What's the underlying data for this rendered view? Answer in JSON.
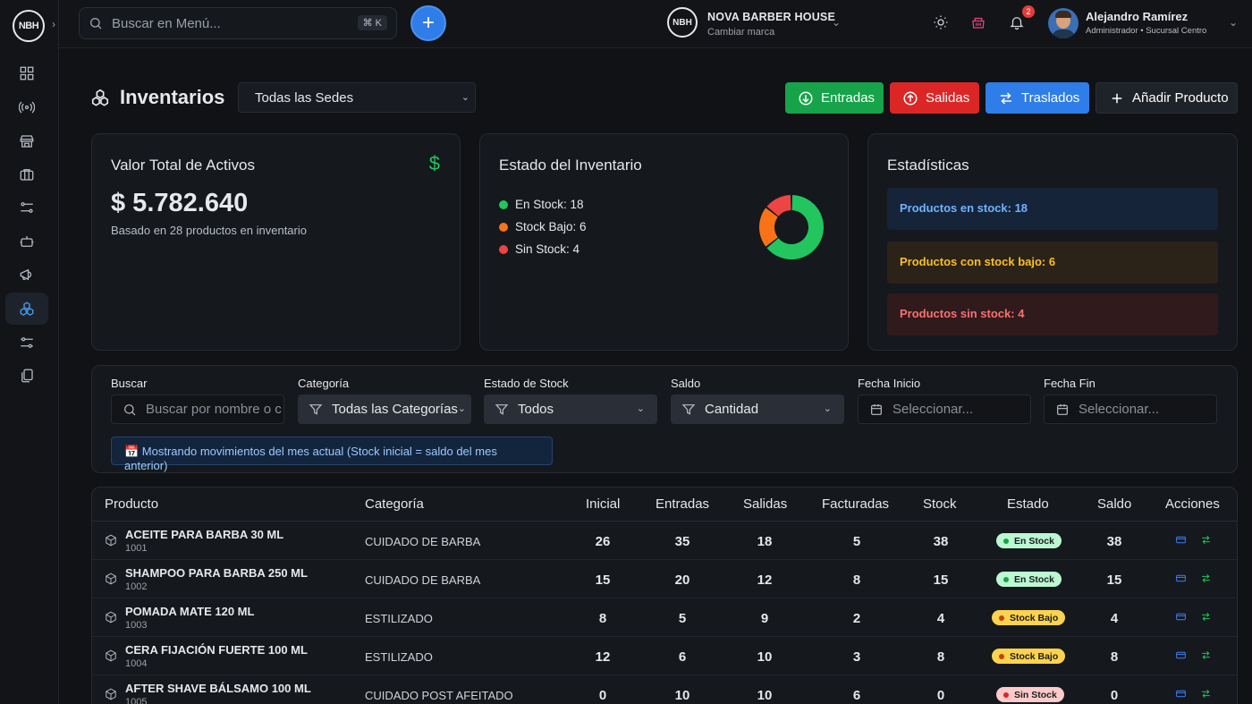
{
  "brand_logo": "NBH",
  "search": {
    "placeholder": "Buscar en Menú...",
    "shortcut": "⌘ K"
  },
  "brand_switcher": {
    "name": "NOVA BARBER HOUSE",
    "subtitle": "Cambiar marca"
  },
  "notifications": {
    "count": "2"
  },
  "user": {
    "name": "Alejandro Ramírez",
    "role": "Administrador • Sucursal Centro"
  },
  "sidebar": {
    "icons": [
      "dashboard-icon",
      "broadcast-icon",
      "store-icon",
      "briefcase-icon",
      "sliders-icon",
      "robot-icon",
      "megaphone-icon",
      "inventory-icon",
      "settings-icon",
      "documents-icon"
    ],
    "active": "inventory-icon"
  },
  "page": {
    "title": "Inventarios",
    "sede_selected": "Todas las Sedes"
  },
  "actions": {
    "entradas": "Entradas",
    "salidas": "Salidas",
    "traslados": "Traslados",
    "add": "Añadir Producto"
  },
  "colors": {
    "green": "#16a34a",
    "red": "#dc2626",
    "blue": "#2f7de8",
    "orange": "#f59e0b"
  },
  "total_card": {
    "title": "Valor Total de Activos",
    "value": "$ 5.782.640",
    "subtitle": "Basado en 28 productos en inventario"
  },
  "state_card": {
    "title": "Estado del Inventario",
    "items": [
      {
        "label": "En Stock: 18",
        "value": 18,
        "color": "#22c55e"
      },
      {
        "label": "Stock Bajo: 6",
        "value": 6,
        "color": "#f97316"
      },
      {
        "label": "Sin Stock: 4",
        "value": 4,
        "color": "#ef4444"
      }
    ]
  },
  "stats_card": {
    "title": "Estadísticas",
    "in_stock": "Productos en stock: 18",
    "low_stock": "Productos con stock bajo: 6",
    "no_stock": "Productos sin stock: 4"
  },
  "filters": {
    "buscar_label": "Buscar",
    "buscar_placeholder": "Buscar por nombre o c",
    "categoria_label": "Categoría",
    "categoria_value": "Todas las Categorías",
    "estado_label": "Estado de Stock",
    "estado_value": "Todos",
    "saldo_label": "Saldo",
    "saldo_value": "Cantidad",
    "fecha_inicio_label": "Fecha Inicio",
    "fecha_inicio_placeholder": "Seleccionar...",
    "fecha_fin_label": "Fecha Fin",
    "fecha_fin_placeholder": "Seleccionar...",
    "info": "📅 Mostrando movimientos del mes actual (Stock inicial = saldo del mes anterior)"
  },
  "table": {
    "headers": {
      "producto": "Producto",
      "categoria": "Categoría",
      "inicial": "Inicial",
      "entradas": "Entradas",
      "salidas": "Salidas",
      "facturadas": "Facturadas",
      "stock": "Stock",
      "estado": "Estado",
      "saldo": "Saldo",
      "acciones": "Acciones"
    },
    "rows": [
      {
        "name": "ACEITE PARA BARBA 30 ML",
        "code": "1001",
        "category": "CUIDADO DE BARBA",
        "inicial": "26",
        "entradas": "35",
        "salidas": "18",
        "facturadas": "5",
        "stock": "38",
        "estado": "En Stock",
        "saldo": "38"
      },
      {
        "name": "SHAMPOO PARA BARBA 250 ML",
        "code": "1002",
        "category": "CUIDADO DE BARBA",
        "inicial": "15",
        "entradas": "20",
        "salidas": "12",
        "facturadas": "8",
        "stock": "15",
        "estado": "En Stock",
        "saldo": "15"
      },
      {
        "name": "POMADA MATE 120 ML",
        "code": "1003",
        "category": "ESTILIZADO",
        "inicial": "8",
        "entradas": "5",
        "salidas": "9",
        "facturadas": "2",
        "stock": "4",
        "estado": "Stock Bajo",
        "saldo": "4"
      },
      {
        "name": "CERA FIJACIÓN FUERTE 100 ML",
        "code": "1004",
        "category": "ESTILIZADO",
        "inicial": "12",
        "entradas": "6",
        "salidas": "10",
        "facturadas": "3",
        "stock": "8",
        "estado": "Stock Bajo",
        "saldo": "8"
      },
      {
        "name": "AFTER SHAVE BÁLSAMO 100 ML",
        "code": "1005",
        "category": "CUIDADO POST AFEITADO",
        "inicial": "0",
        "entradas": "10",
        "salidas": "10",
        "facturadas": "6",
        "stock": "0",
        "estado": "Sin Stock",
        "saldo": "0"
      }
    ]
  }
}
